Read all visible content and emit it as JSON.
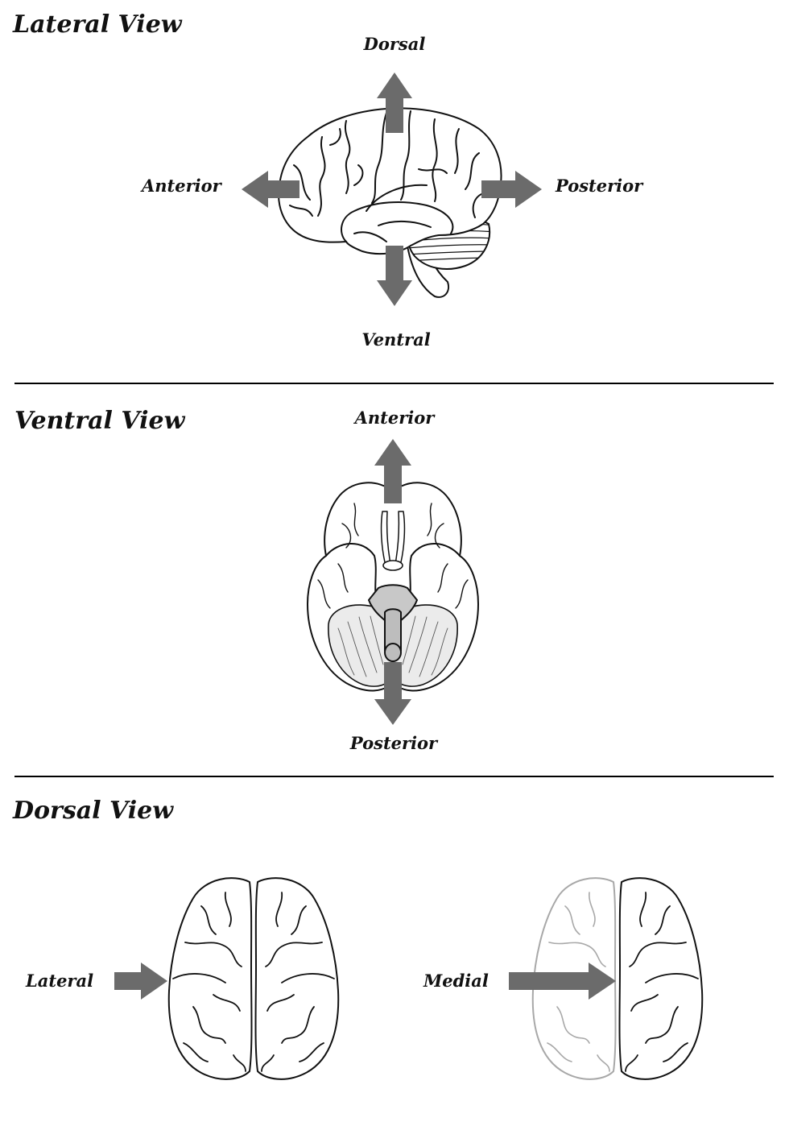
{
  "lateral": {
    "title": "Lateral View",
    "dorsal": "Dorsal",
    "ventral": "Ventral",
    "anterior": "Anterior",
    "posterior": "Posterior"
  },
  "ventral_view": {
    "title": "Ventral View",
    "anterior": "Anterior",
    "posterior": "Posterior"
  },
  "dorsal_view": {
    "title": "Dorsal View",
    "lateral": "Lateral",
    "medial": "Medial"
  },
  "colors": {
    "arrow": "#6b6b6b",
    "outline": "#111111",
    "faded_outline": "#a8a8a8",
    "brainstem_fill": "#c8c8c8",
    "cerebellum_fill": "#e6e6e6"
  }
}
